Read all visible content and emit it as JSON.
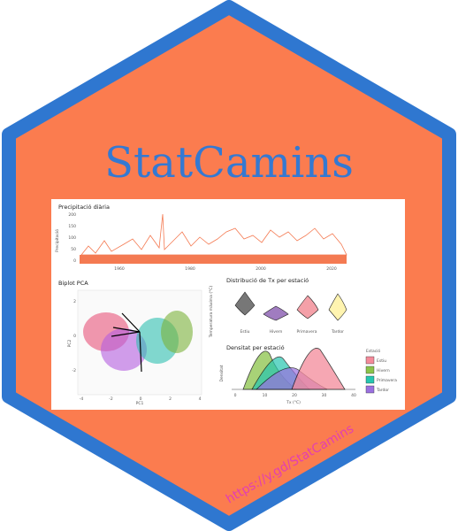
{
  "title": "StatCamins",
  "url": "https://y.gd/StatCamins",
  "precip": {
    "title": "Precipitació diària",
    "ylabel": "Precipitació",
    "yticks": [
      "200",
      "150",
      "100",
      "50",
      "0"
    ],
    "xticks": [
      "1960",
      "1980",
      "2000",
      "2020"
    ]
  },
  "pca": {
    "title": "Biplot PCA",
    "xlabel": "PC1",
    "ylabel": "PC2",
    "xticks": [
      "-4",
      "-2",
      "0",
      "2",
      "4"
    ],
    "yticks": [
      "2",
      "0",
      "-2"
    ]
  },
  "violin": {
    "title": "Distribució de Tx per estació",
    "ylabel": "Temperatura màxima (°C)",
    "categories": [
      "Estiu",
      "Hivern",
      "Primavera",
      "Tardor"
    ]
  },
  "density": {
    "title": "Densitat per estació",
    "xlabel": "Tx (°C)",
    "ylabel": "Densitat",
    "xticks": [
      "0",
      "10",
      "20",
      "30",
      "40"
    ],
    "legend_title": "Estació",
    "legend": [
      "Estiu",
      "Hivern",
      "Primavera",
      "Tardor"
    ]
  }
}
